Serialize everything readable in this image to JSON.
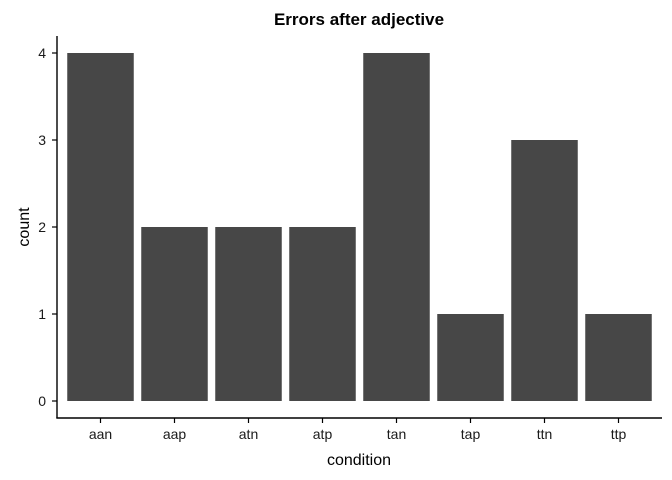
{
  "chart_data": {
    "type": "bar",
    "title": "Errors after adjective",
    "xlabel": "condition",
    "ylabel": "count",
    "categories": [
      "aan",
      "aap",
      "atn",
      "atp",
      "tan",
      "tap",
      "ttn",
      "ttp"
    ],
    "values": [
      4,
      2,
      2,
      2,
      4,
      1,
      3,
      1
    ],
    "ylim": [
      0,
      4
    ],
    "yticks": [
      0,
      1,
      2,
      3,
      4
    ],
    "grid": false,
    "legend": "none",
    "bar_color": "#474747"
  }
}
